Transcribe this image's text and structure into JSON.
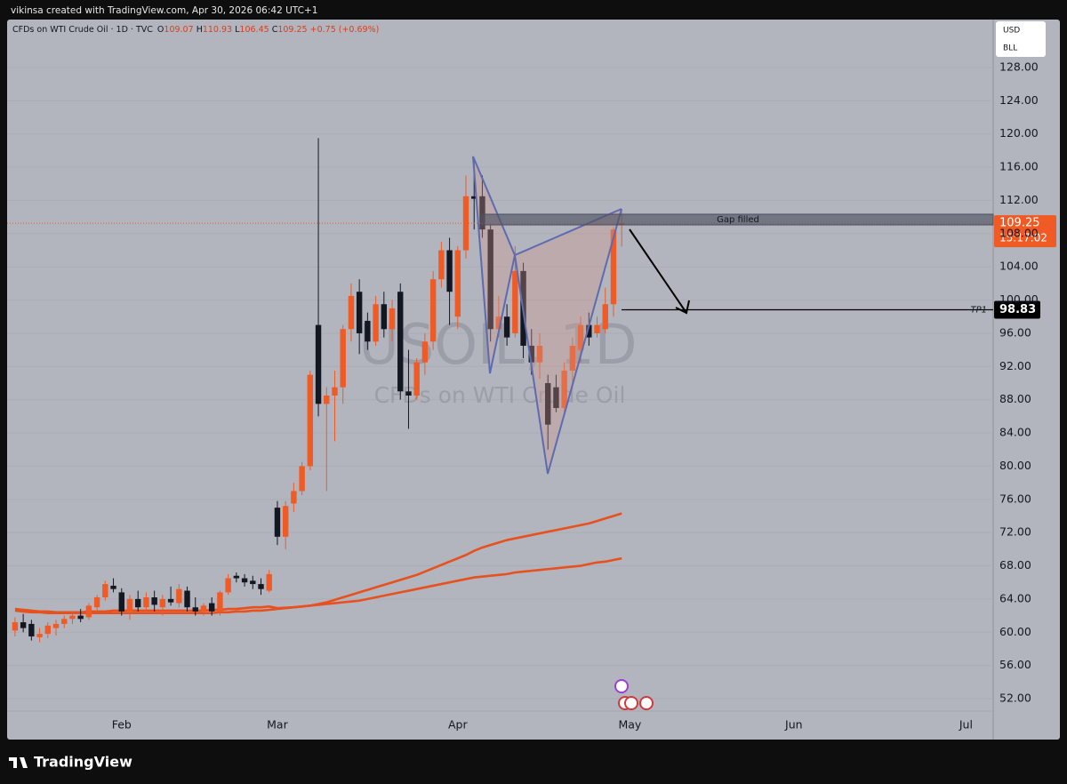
{
  "header": "vikinsa created with TradingView.com, Apr 30, 2026 06:42 UTC+1",
  "footer": "TradingView",
  "chart_data": {
    "type": "candlestick",
    "legend": {
      "symbol": "CFDs on WTI Crude Oil · 1D · TVC",
      "fields": [
        {
          "key": "O",
          "value": 109.07
        },
        {
          "key": "H",
          "value": 110.93
        },
        {
          "key": "L",
          "value": 106.45
        },
        {
          "key": "C",
          "value": 109.25
        }
      ],
      "change": "+0.75 (+0.69%)"
    },
    "watermark_symbol": "USOIL, 1D",
    "watermark_name": "CFDs on WTI Crude Oil",
    "currency": "USD",
    "unit": "BLL",
    "categories": [
      null,
      null,
      null,
      null,
      null,
      null,
      null,
      null,
      null,
      null,
      null,
      null,
      null,
      "Feb",
      null,
      null,
      null,
      null,
      null,
      null,
      null,
      null,
      null,
      null,
      null,
      null,
      null,
      null,
      null,
      null,
      null,
      null,
      "Mar",
      null,
      null,
      null,
      null,
      null,
      null,
      null,
      null,
      null,
      null,
      null,
      null,
      null,
      null,
      null,
      null,
      null,
      null,
      null,
      null,
      null,
      "Apr",
      null,
      null,
      null,
      null,
      null,
      null,
      null,
      null,
      null,
      null,
      null,
      null,
      null,
      null,
      null,
      null,
      null,
      null,
      null,
      null,
      "May",
      null,
      null,
      null,
      null,
      null,
      null,
      null,
      null,
      null,
      null,
      null,
      null,
      null,
      null,
      null,
      null,
      null,
      null,
      null,
      "Jun",
      null,
      null,
      null,
      null,
      null,
      null,
      null,
      null,
      null,
      null,
      null,
      null,
      null,
      null,
      null,
      null,
      null,
      null,
      null,
      null,
      "Jul",
      null,
      null,
      null
    ],
    "open": [
      60.2,
      61.2,
      61.0,
      59.4,
      59.8,
      60.5,
      61.0,
      61.6,
      62.0,
      61.8,
      63.0,
      64.2,
      65.6,
      64.8,
      62.5,
      64.0,
      63.0,
      64.2,
      63.0,
      64.0,
      63.5,
      65.0,
      63.0,
      62.5,
      63.5,
      62.5,
      64.8,
      66.8,
      66.5,
      66.2,
      65.8,
      65.0,
      75.0,
      71.5,
      75.5,
      77.0,
      80.0,
      97.0,
      87.5,
      88.5,
      89.5,
      96.5,
      101.0,
      97.5,
      95.0,
      99.5,
      96.5,
      101.0,
      89.0,
      88.5,
      92.5,
      95.0,
      102.5,
      106.0,
      98.0,
      106.0,
      112.5,
      112.5,
      108.5,
      96.5,
      98.0,
      96.0,
      103.5,
      94.5,
      92.5,
      90.0,
      89.5,
      87.0,
      91.5,
      94.0,
      97.0,
      96.0,
      96.5,
      99.5,
      109.07,
      null,
      null,
      null,
      null,
      null,
      null,
      null,
      null,
      null,
      null,
      null,
      null,
      null,
      null,
      null,
      null,
      null,
      null,
      null,
      null,
      null,
      null,
      null,
      null,
      null,
      null,
      null,
      null,
      null,
      null,
      null,
      null,
      null,
      null,
      null,
      null,
      null,
      null,
      null,
      null,
      null,
      null,
      null,
      null,
      null
    ],
    "high": [
      61.8,
      62.2,
      61.5,
      60.5,
      61.2,
      61.5,
      62.0,
      62.4,
      62.8,
      63.5,
      64.5,
      66.2,
      66.5,
      65.3,
      64.5,
      65.0,
      64.8,
      65.0,
      64.5,
      65.5,
      65.8,
      65.5,
      64.2,
      63.5,
      64.2,
      65.0,
      67.0,
      67.2,
      67.0,
      66.8,
      66.5,
      67.5,
      75.8,
      75.8,
      78.0,
      80.5,
      91.5,
      119.5,
      89.5,
      91.5,
      97.0,
      102.0,
      102.5,
      98.5,
      100.5,
      101.0,
      100.0,
      102.0,
      94.0,
      93.0,
      96.0,
      103.5,
      107.0,
      107.5,
      106.5,
      115.0,
      117.0,
      115.0,
      109.0,
      100.5,
      99.5,
      106.5,
      104.5,
      96.5,
      96.0,
      91.0,
      91.0,
      92.5,
      95.5,
      98.0,
      98.5,
      98.0,
      101.5,
      108.8,
      110.93,
      null,
      null,
      null,
      null,
      null,
      null,
      null,
      null,
      null,
      null,
      null,
      null,
      null,
      null,
      null,
      null,
      null,
      null,
      null,
      null,
      null,
      null,
      null,
      null,
      null,
      null,
      null,
      null,
      null,
      null,
      null,
      null,
      null,
      null,
      null,
      null,
      null,
      null,
      null,
      null,
      null,
      null,
      null,
      null,
      null
    ],
    "low": [
      59.5,
      60.0,
      59.0,
      58.8,
      59.3,
      59.6,
      60.5,
      61.0,
      61.2,
      61.5,
      62.5,
      63.8,
      64.8,
      62.0,
      61.5,
      62.5,
      62.3,
      62.5,
      62.0,
      63.2,
      63.0,
      62.5,
      62.0,
      62.0,
      62.0,
      62.0,
      64.5,
      66.0,
      65.5,
      65.2,
      64.5,
      64.8,
      70.5,
      70.0,
      74.5,
      76.5,
      79.5,
      86.0,
      77.0,
      83.0,
      87.5,
      95.0,
      93.5,
      94.0,
      94.5,
      95.5,
      95.0,
      88.0,
      84.5,
      88.0,
      91.0,
      94.0,
      101.5,
      97.0,
      96.5,
      105.0,
      108.5,
      107.5,
      95.0,
      95.5,
      94.5,
      95.5,
      93.0,
      91.0,
      90.5,
      82.0,
      86.5,
      86.0,
      90.0,
      92.5,
      94.5,
      95.5,
      96.0,
      98.0,
      106.45,
      null,
      null,
      null,
      null,
      null,
      null,
      null,
      null,
      null,
      null,
      null,
      null,
      null,
      null,
      null,
      null,
      null,
      null,
      null,
      null,
      null,
      null,
      null,
      null,
      null,
      null,
      null,
      null,
      null,
      null,
      null,
      null,
      null,
      null,
      null,
      null,
      null,
      null,
      null,
      null,
      null,
      null,
      null,
      null,
      null
    ],
    "close": [
      61.2,
      60.5,
      59.5,
      59.8,
      60.8,
      61.0,
      61.6,
      62.0,
      61.6,
      63.2,
      64.2,
      65.8,
      65.2,
      62.5,
      64.0,
      63.0,
      64.2,
      63.3,
      64.0,
      63.6,
      65.2,
      63.0,
      62.5,
      63.2,
      62.5,
      64.8,
      66.5,
      66.5,
      66.0,
      65.8,
      65.2,
      67.0,
      71.5,
      75.2,
      77.0,
      80.0,
      91.0,
      87.5,
      88.5,
      89.5,
      96.5,
      100.5,
      96.0,
      95.0,
      99.5,
      96.5,
      99.0,
      89.0,
      88.5,
      92.5,
      95.0,
      102.5,
      106.0,
      101.0,
      106.0,
      112.5,
      112.2,
      108.5,
      96.5,
      98.0,
      95.5,
      103.5,
      94.5,
      92.5,
      94.5,
      85.0,
      87.0,
      91.5,
      94.5,
      97.0,
      95.5,
      97.0,
      99.5,
      108.5,
      109.25,
      null,
      null,
      null,
      null,
      null,
      null,
      null,
      null,
      null,
      null,
      null,
      null,
      null,
      null,
      null,
      null,
      null,
      null,
      null,
      null,
      null,
      null,
      null,
      null,
      null,
      null,
      null,
      null,
      null,
      null,
      null,
      null,
      null,
      null,
      null,
      null,
      null,
      null,
      null,
      null,
      null,
      null,
      null,
      null,
      null
    ],
    "up_color": "#f05a24",
    "down_color": "#131722",
    "series": [
      {
        "color": "#e8501e",
        "values": [
          62.8,
          62.7,
          62.6,
          62.5,
          62.5,
          62.4,
          62.4,
          62.4,
          62.4,
          62.5,
          62.5,
          62.5,
          62.6,
          62.6,
          62.6,
          62.6,
          62.6,
          62.6,
          62.6,
          62.6,
          62.6,
          62.6,
          62.6,
          62.6,
          62.7,
          62.7,
          62.8,
          62.8,
          62.9,
          63.0,
          63.0,
          63.1,
          62.9,
          62.95,
          63.0,
          63.1,
          63.2,
          63.4,
          63.6,
          63.9,
          64.2,
          64.5,
          64.8,
          65.1,
          65.4,
          65.7,
          66.0,
          66.3,
          66.6,
          66.9,
          67.3,
          67.7,
          68.1,
          68.5,
          68.9,
          69.3,
          69.8,
          70.2,
          70.5,
          70.8,
          71.1,
          71.3,
          71.5,
          71.7,
          71.9,
          72.1,
          72.3,
          72.5,
          72.7,
          72.9,
          73.1,
          73.4,
          73.7,
          74.0,
          74.3,
          null,
          null,
          null,
          null,
          null,
          null,
          null,
          null,
          null,
          null,
          null,
          null,
          null,
          null,
          null,
          null,
          null,
          null,
          null,
          null,
          null,
          null,
          null,
          null,
          null,
          null,
          null,
          null,
          null,
          null,
          null,
          null,
          null,
          null,
          null,
          null,
          null,
          null,
          null,
          null,
          null,
          null,
          null,
          null,
          null
        ]
      },
      {
        "color": "#e8501e",
        "values": [
          62.6,
          62.5,
          62.4,
          62.4,
          62.3,
          62.3,
          62.3,
          62.3,
          62.3,
          62.3,
          62.3,
          62.3,
          62.3,
          62.3,
          62.3,
          62.3,
          62.3,
          62.3,
          62.3,
          62.3,
          62.3,
          62.3,
          62.3,
          62.3,
          62.3,
          62.4,
          62.4,
          62.5,
          62.5,
          62.6,
          62.6,
          62.7,
          62.8,
          62.9,
          63.0,
          63.1,
          63.2,
          63.3,
          63.4,
          63.5,
          63.6,
          63.7,
          63.8,
          64.0,
          64.2,
          64.4,
          64.6,
          64.8,
          65.0,
          65.2,
          65.4,
          65.6,
          65.8,
          66.0,
          66.2,
          66.4,
          66.6,
          66.7,
          66.8,
          66.9,
          67.0,
          67.2,
          67.3,
          67.4,
          67.5,
          67.6,
          67.7,
          67.8,
          67.9,
          68.0,
          68.2,
          68.4,
          68.5,
          68.7,
          68.9,
          null,
          null,
          null,
          null,
          null,
          null,
          null,
          null,
          null,
          null,
          null,
          null,
          null,
          null,
          null,
          null,
          null,
          null,
          null,
          null,
          null,
          null,
          null,
          null,
          null,
          null,
          null,
          null,
          null,
          null,
          null,
          null,
          null,
          null,
          null,
          null,
          null,
          null,
          null,
          null,
          null,
          null,
          null,
          null,
          null
        ]
      }
    ],
    "ylim": [
      50.5,
      133.78
    ],
    "yticks": [
      {
        "value": 52,
        "label": "52.00"
      },
      {
        "value": 56,
        "label": "56.00"
      },
      {
        "value": 60,
        "label": "60.00"
      },
      {
        "value": 64,
        "label": "64.00"
      },
      {
        "value": 68,
        "label": "68.00"
      },
      {
        "value": 72,
        "label": "72.00"
      },
      {
        "value": 76,
        "label": "76.00"
      },
      {
        "value": 80,
        "label": "80.00"
      },
      {
        "value": 84,
        "label": "84.00"
      },
      {
        "value": 88,
        "label": "88.00"
      },
      {
        "value": 92,
        "label": "92.00"
      },
      {
        "value": 96,
        "label": "96.00"
      },
      {
        "value": 100,
        "label": "100.00"
      },
      {
        "value": 104,
        "label": "104.00"
      },
      {
        "value": 108,
        "label": "108.00"
      },
      {
        "value": 112,
        "label": "112.00"
      },
      {
        "value": 116,
        "label": "116.00"
      },
      {
        "value": 120,
        "label": "120.00"
      },
      {
        "value": 124,
        "label": "124.00"
      },
      {
        "value": 128,
        "label": "128.00"
      }
    ],
    "grid": true,
    "last_price": 109.25,
    "countdown": "15:17:02",
    "gap_label": "Gap filled",
    "tp1_label": "TP1",
    "tp1_price": 98.83
  }
}
